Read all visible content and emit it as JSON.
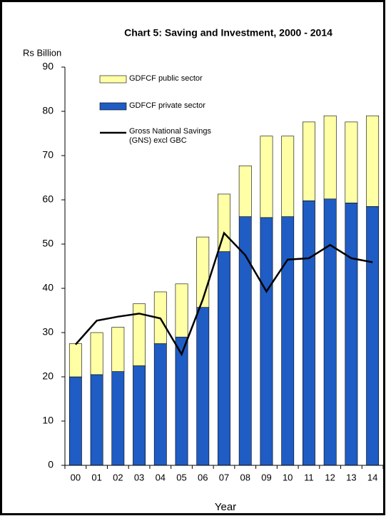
{
  "chart_data": {
    "type": "bar",
    "title": "Chart 5: Saving and Investment, 2000 - 2014",
    "y_axis_label": "Rs Billion",
    "x_axis_label": "Year",
    "categories": [
      "00",
      "01",
      "02",
      "03",
      "04",
      "05",
      "06",
      "07",
      "08",
      "09",
      "10",
      "11",
      "12",
      "13",
      "14"
    ],
    "stacked": true,
    "series": [
      {
        "name": "GDFCF private sector",
        "color": "#1f5cc4",
        "values": [
          20,
          20.5,
          21.2,
          22.5,
          27.5,
          29,
          35.7,
          48.3,
          56.2,
          56,
          56.2,
          59.8,
          60.2,
          59.3,
          58.5
        ]
      },
      {
        "name": "GDFCF public sector",
        "color": "#ffffa6",
        "values": [
          7.5,
          9.5,
          10,
          14,
          11.7,
          12,
          15.9,
          13,
          11.5,
          18.4,
          18.2,
          17.8,
          18.8,
          18.3,
          20.5
        ]
      },
      {
        "name": "Gross National Savings (GNS) excl GBC",
        "type": "line",
        "color": "#000000",
        "values": [
          27.3,
          32.7,
          33.6,
          34.3,
          33.2,
          25.1,
          37.5,
          52.5,
          47.5,
          39.3,
          46.5,
          46.8,
          49.8,
          46.8,
          45.9
        ]
      }
    ],
    "ylim": [
      0,
      90
    ],
    "yticks": [
      0,
      10,
      20,
      30,
      40,
      50,
      60,
      70,
      80,
      90
    ],
    "grid": false
  }
}
